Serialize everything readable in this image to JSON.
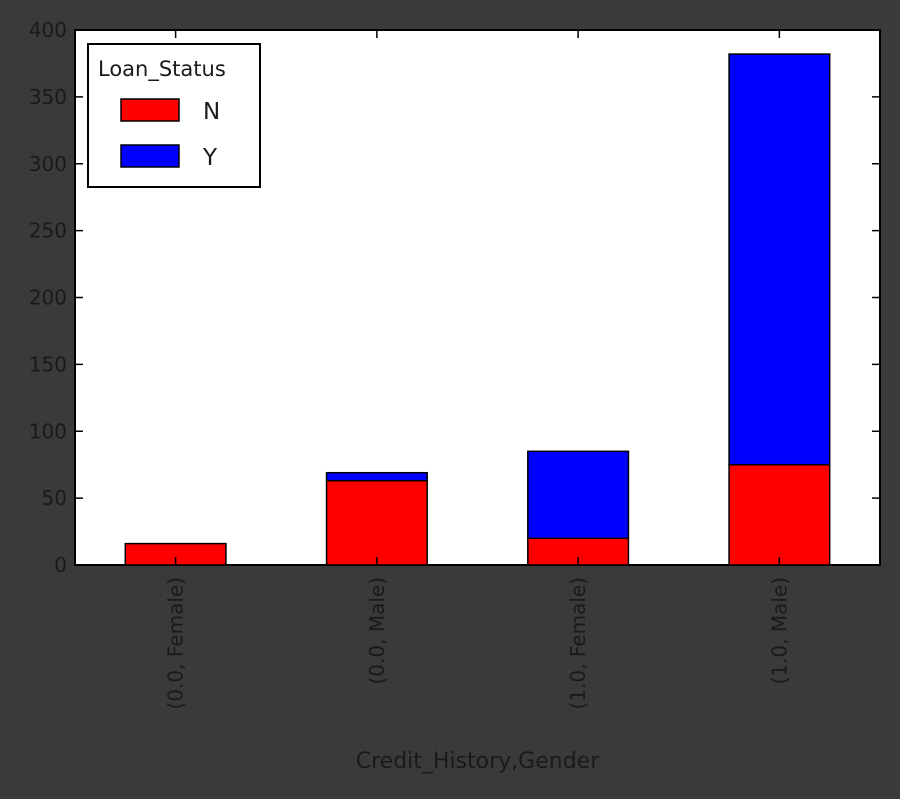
{
  "colors": {
    "background": "#3a3a3a",
    "plot_area": "#ffffff",
    "axis_text": "#1a1a1a",
    "N": "#ff0000",
    "Y": "#0000ff"
  },
  "chart_data": {
    "type": "bar",
    "stacked": true,
    "title": "",
    "xlabel": "Credit_History,Gender",
    "ylabel": "",
    "categories": [
      "(0.0, Female)",
      "(0.0, Male)",
      "(1.0, Female)",
      "(1.0, Male)"
    ],
    "series": [
      {
        "name": "N",
        "values": [
          16,
          63,
          20,
          75
        ],
        "color": "#ff0000"
      },
      {
        "name": "Y",
        "values": [
          0,
          6,
          65,
          307
        ],
        "color": "#0000ff"
      }
    ],
    "ylim": [
      0,
      400
    ],
    "yticks": [
      0,
      50,
      100,
      150,
      200,
      250,
      300,
      350,
      400
    ],
    "grid": false,
    "legend": {
      "title": "Loan_Status",
      "placement": "top-left"
    },
    "xtick_rotation": "vertical"
  }
}
